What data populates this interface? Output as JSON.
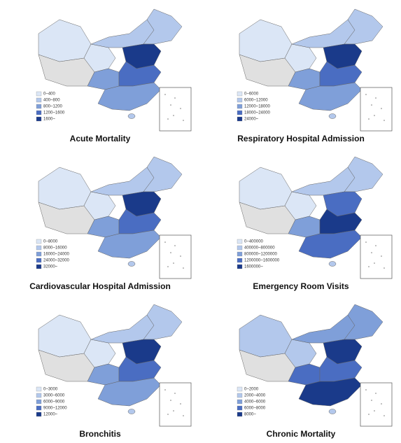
{
  "legend_colors": [
    "#dbe6f6",
    "#b3c8ec",
    "#7f9fd9",
    "#4a6dc2",
    "#1a3a8a"
  ],
  "maps": [
    {
      "title": "Acute Mortality",
      "legend": [
        "0~400",
        "400~800",
        "800~1200",
        "1200~1600",
        "1600~"
      ]
    },
    {
      "title": "Respiratory Hospital Admission",
      "legend": [
        "0~6000",
        "6000~12000",
        "12000~18000",
        "18000~24000",
        "24000~"
      ]
    },
    {
      "title": "Cardiovascular Hospital Admission",
      "legend": [
        "0~8000",
        "8000~16000",
        "16000~24000",
        "24000~32000",
        "32000~"
      ]
    },
    {
      "title": "Emergency Room Visits",
      "legend": [
        "0~400000",
        "400000~800000",
        "800000~1200000",
        "1200000~1600000",
        "1600000~"
      ]
    },
    {
      "title": "Bronchitis",
      "legend": [
        "0~3000",
        "3000~6000",
        "6000~9000",
        "9000~12000",
        "12000~"
      ]
    },
    {
      "title": "Chronic Mortality",
      "legend": [
        "0~2000",
        "2000~4000",
        "4000~6000",
        "6000~8000",
        "8000~"
      ]
    }
  ]
}
